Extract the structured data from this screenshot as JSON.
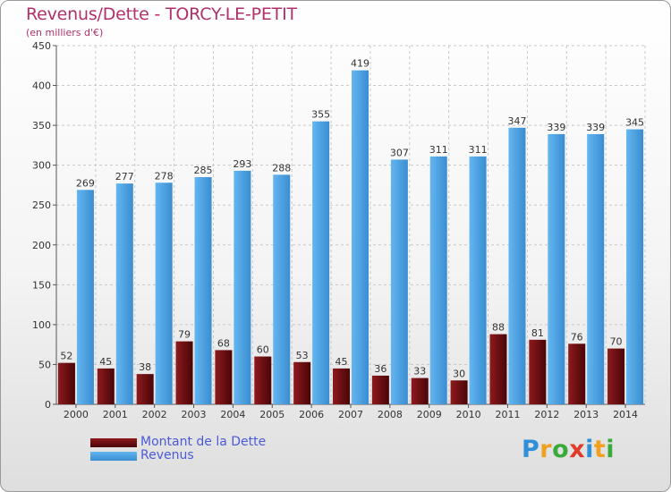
{
  "chart_data": {
    "type": "bar",
    "title": "Revenus/Dette - TORCY-LE-PETIT",
    "subtitle": "(en milliers d'€)",
    "categories": [
      "2000",
      "2001",
      "2002",
      "2003",
      "2004",
      "2005",
      "2006",
      "2007",
      "2008",
      "2009",
      "2010",
      "2011",
      "2012",
      "2013",
      "2014"
    ],
    "series": [
      {
        "name": "Montant de la Dette",
        "color": "#6e0f12",
        "values": [
          52,
          45,
          38,
          79,
          68,
          60,
          53,
          45,
          36,
          33,
          30,
          88,
          81,
          76,
          70
        ]
      },
      {
        "name": "Revenus",
        "color": "#4da3e3",
        "values": [
          269,
          277,
          278,
          285,
          293,
          288,
          355,
          419,
          307,
          311,
          311,
          347,
          339,
          339,
          345
        ]
      }
    ],
    "ylim": [
      0,
      450
    ],
    "yticks": [
      0,
      50,
      100,
      150,
      200,
      250,
      300,
      350,
      400,
      450
    ],
    "grid": true,
    "legend_position": "bottom-left",
    "xlabel": "",
    "ylabel": ""
  },
  "brand": {
    "letters": [
      "P",
      "r",
      "o",
      "x",
      "i",
      "t",
      "i"
    ],
    "colors": [
      "#2f8fd8",
      "#f0a020",
      "#3aab3a",
      "#e03a2a",
      "#2f8fd8",
      "#f0a020",
      "#3aab3a"
    ]
  }
}
